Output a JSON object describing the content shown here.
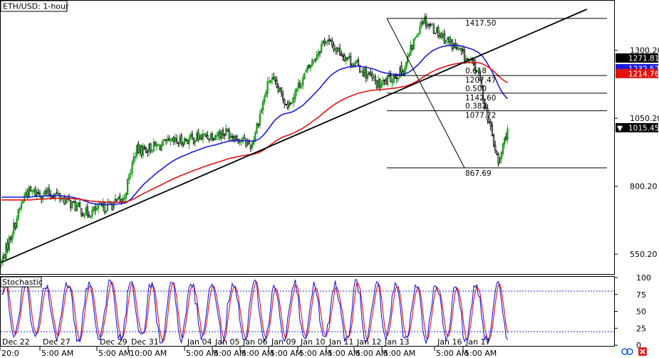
{
  "window": {
    "title": "ETH/USD: 1-hour",
    "indicator_title": "Stochastic"
  },
  "price_axis": {
    "ticks": [
      "1300.20",
      "1050.20",
      "800.20",
      "550.20"
    ],
    "tick_values": [
      1300.2,
      1050.2,
      800.2,
      550.2
    ],
    "range": [
      480,
      1480
    ]
  },
  "price_tags": [
    {
      "label": "1271.81",
      "value": 1271.81,
      "color": "#000000"
    },
    {
      "label": "1232.52",
      "value": 1232.52,
      "color": "#1a1adc"
    },
    {
      "label": "1214.76",
      "value": 1214.76,
      "color": "#e01010"
    },
    {
      "label": "1015.45",
      "value": 1015.45,
      "color": "#000000",
      "marker": "▼"
    }
  ],
  "fibonacci": {
    "levels": [
      {
        "price_label": "1417.50",
        "ratio_label": "",
        "value": 1417.5
      },
      {
        "price_label": "1207.47",
        "ratio_label": "0.618",
        "value": 1207.47
      },
      {
        "price_label": "1142.60",
        "ratio_label": "0.500",
        "value": 1142.6
      },
      {
        "price_label": "1077.72",
        "ratio_label": "0.382",
        "value": 1077.72
      },
      {
        "price_label": "867.69",
        "ratio_label": "",
        "value": 867.69
      }
    ]
  },
  "stochastic_axis": {
    "ticks": [
      "100",
      "75",
      "50",
      "25",
      "0"
    ],
    "tick_values": [
      100,
      75,
      50,
      25,
      0
    ],
    "overbought": 80,
    "oversold": 20
  },
  "date_labels": [
    "Dec 22",
    "Dec 27",
    "Dec 29",
    "Dec 31",
    "Jan 04",
    "Jan 05",
    "Jan 06",
    "Jan 09",
    "Jan 10",
    "Jan 11",
    "Jan 12",
    "Jan 13",
    "Jan 16",
    "Jan 17"
  ],
  "time_labels": [
    "20:0",
    "5:00 AM",
    "5:00 AM",
    "10:00 AM",
    "5:00 AM",
    "5:00 AM",
    "5:00 AM",
    "5:00 AM",
    "5:00 AM",
    "5:00 AM",
    "5:00 AM",
    "5:00 AM",
    "5:00 AM",
    "5:00 AM"
  ],
  "colors": {
    "bull": "#1d9a1d",
    "bear": "#000000",
    "ma_fast": "#1a1adc",
    "ma_slow": "#e01010",
    "stoch_k": "#1a1adc",
    "stoch_d": "#e01010"
  },
  "chart_data": {
    "type": "candlestick",
    "symbol": "ETH/USD",
    "timeframe": "1-hour",
    "trendline": [
      [
        0,
        520
      ],
      [
        1,
        1490
      ]
    ],
    "fib_swing": {
      "high": 1417.5,
      "low": 867.69
    },
    "anchors": [
      {
        "t": 0,
        "p": 520
      },
      {
        "t": 0.04,
        "p": 780
      },
      {
        "t": 0.09,
        "p": 770
      },
      {
        "t": 0.14,
        "p": 700
      },
      {
        "t": 0.2,
        "p": 750
      },
      {
        "t": 0.22,
        "p": 930
      },
      {
        "t": 0.3,
        "p": 970
      },
      {
        "t": 0.37,
        "p": 1000
      },
      {
        "t": 0.41,
        "p": 950
      },
      {
        "t": 0.44,
        "p": 1200
      },
      {
        "t": 0.47,
        "p": 1100
      },
      {
        "t": 0.53,
        "p": 1340
      },
      {
        "t": 0.58,
        "p": 1250
      },
      {
        "t": 0.62,
        "p": 1170
      },
      {
        "t": 0.66,
        "p": 1230
      },
      {
        "t": 0.69,
        "p": 1420
      },
      {
        "t": 0.74,
        "p": 1320
      },
      {
        "t": 0.78,
        "p": 1230
      },
      {
        "t": 0.815,
        "p": 880
      },
      {
        "t": 0.83,
        "p": 1015
      }
    ]
  }
}
